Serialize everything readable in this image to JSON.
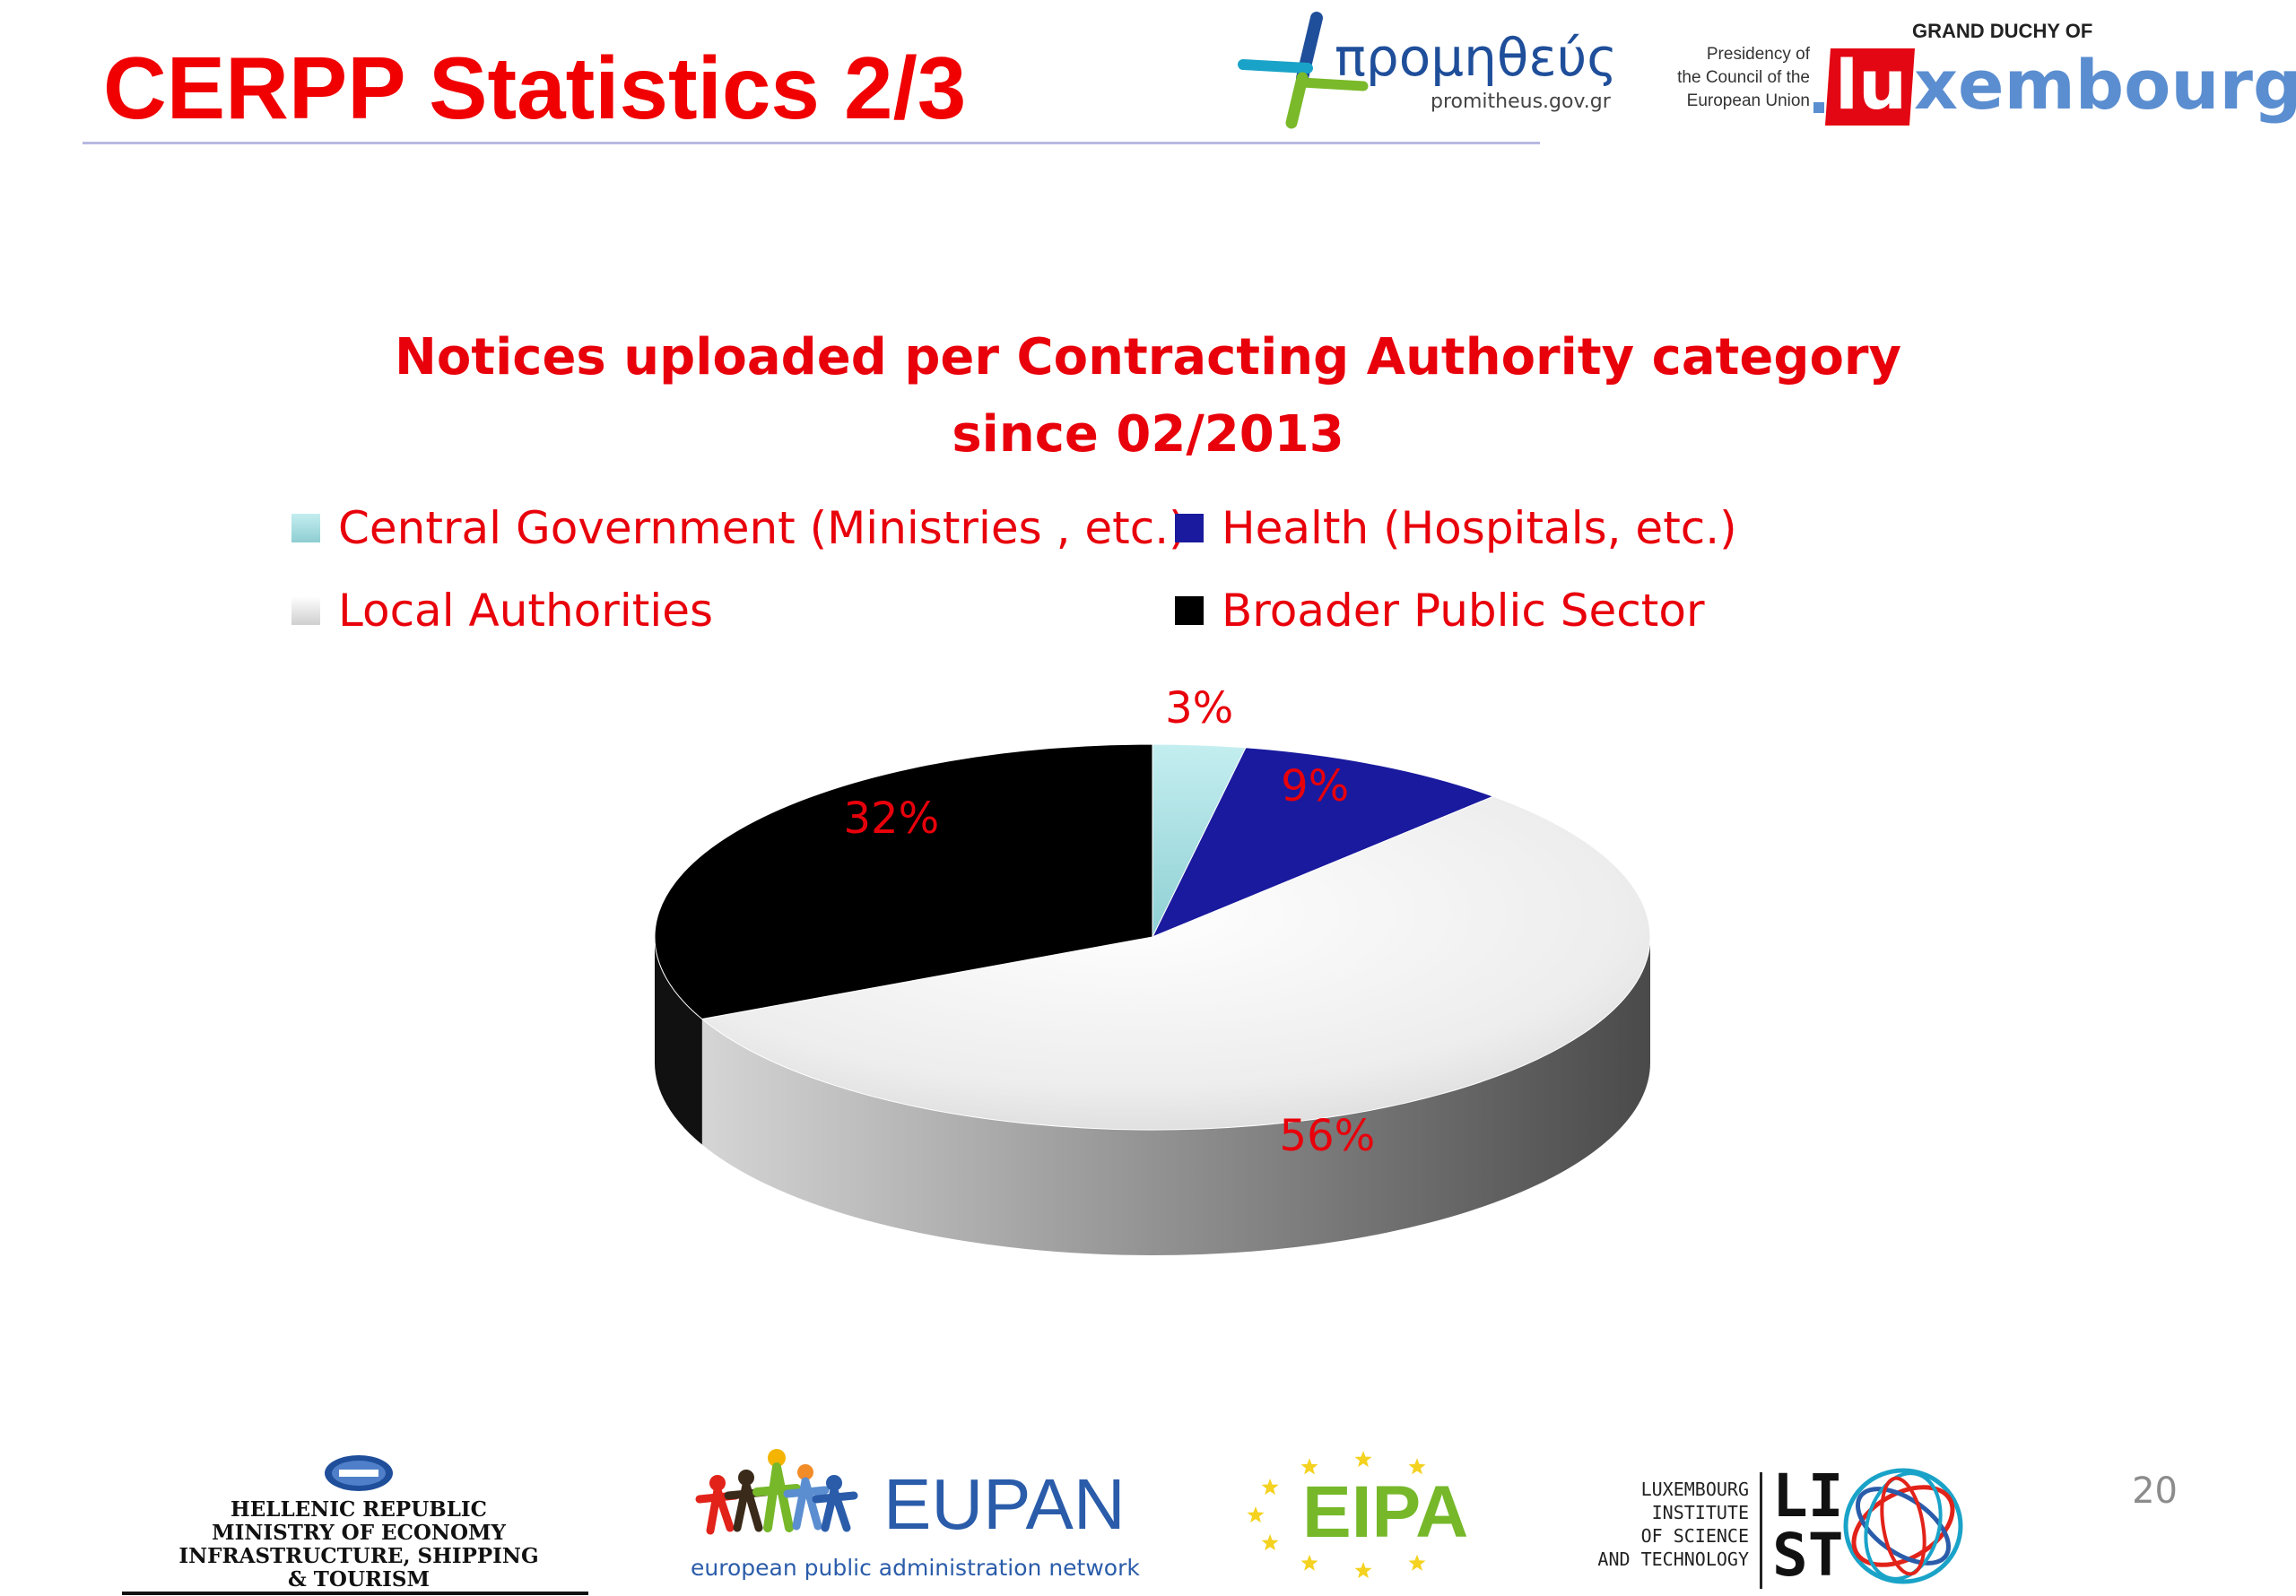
{
  "slide": {
    "title": "CERPP Statistics 2/3",
    "page_number": "20"
  },
  "header_logos": {
    "prometheus": {
      "name": "προμηθεύς",
      "url": "promitheus.gov.gr",
      "accent_colors": [
        "#1f4e9a",
        "#7ab929",
        "#1aa3c8"
      ]
    },
    "presidency": {
      "line1": "Presidency of",
      "line2": "the Council of the",
      "line3": "European Union"
    },
    "luxembourg": {
      "top": "GRAND DUCHY OF",
      "prefix": "lu",
      "rest": "xembourg",
      "red": "#e30613",
      "blue": "#5b8ed0"
    }
  },
  "chart_data": {
    "type": "pie",
    "style": "3d-tilted",
    "title": [
      "Notices uploaded per Contracting Authority category",
      "since 02/2013"
    ],
    "legend_position": "top",
    "slices": [
      {
        "label": "Central Government (Ministries , etc.)",
        "value": 3,
        "data_label": "3%",
        "color": "#a5dde0"
      },
      {
        "label": "Health (Hospitals, etc.)",
        "value": 9,
        "data_label": "9%",
        "color": "#1a1a9e"
      },
      {
        "label": "Local Authorities",
        "value": 56,
        "data_label": "56%",
        "color": "#eeeeee"
      },
      {
        "label": "Broader Public Sector",
        "value": 32,
        "data_label": "32%",
        "color": "#000000"
      }
    ],
    "label_color": "#e8000b"
  },
  "footer_logos": {
    "hellenic": {
      "lines": [
        "HELLENIC REPUBLIC",
        "MINISTRY OF ECONOMY",
        "INFRASTRUCTURE, SHIPPING",
        "& TOURISM"
      ]
    },
    "eupan": {
      "name": "EUPAN",
      "subtitle": "european public administration network",
      "color": "#2a5caa"
    },
    "eipa": {
      "name": "EIPA",
      "color": "#76b82a",
      "star_color": "#f4d21f"
    },
    "list": {
      "lines": [
        "LUXEMBOURG",
        "INSTITUTE",
        "OF SCIENCE",
        "AND TECHNOLOGY"
      ],
      "mark_top": "LI",
      "mark_bottom": "ST"
    }
  }
}
